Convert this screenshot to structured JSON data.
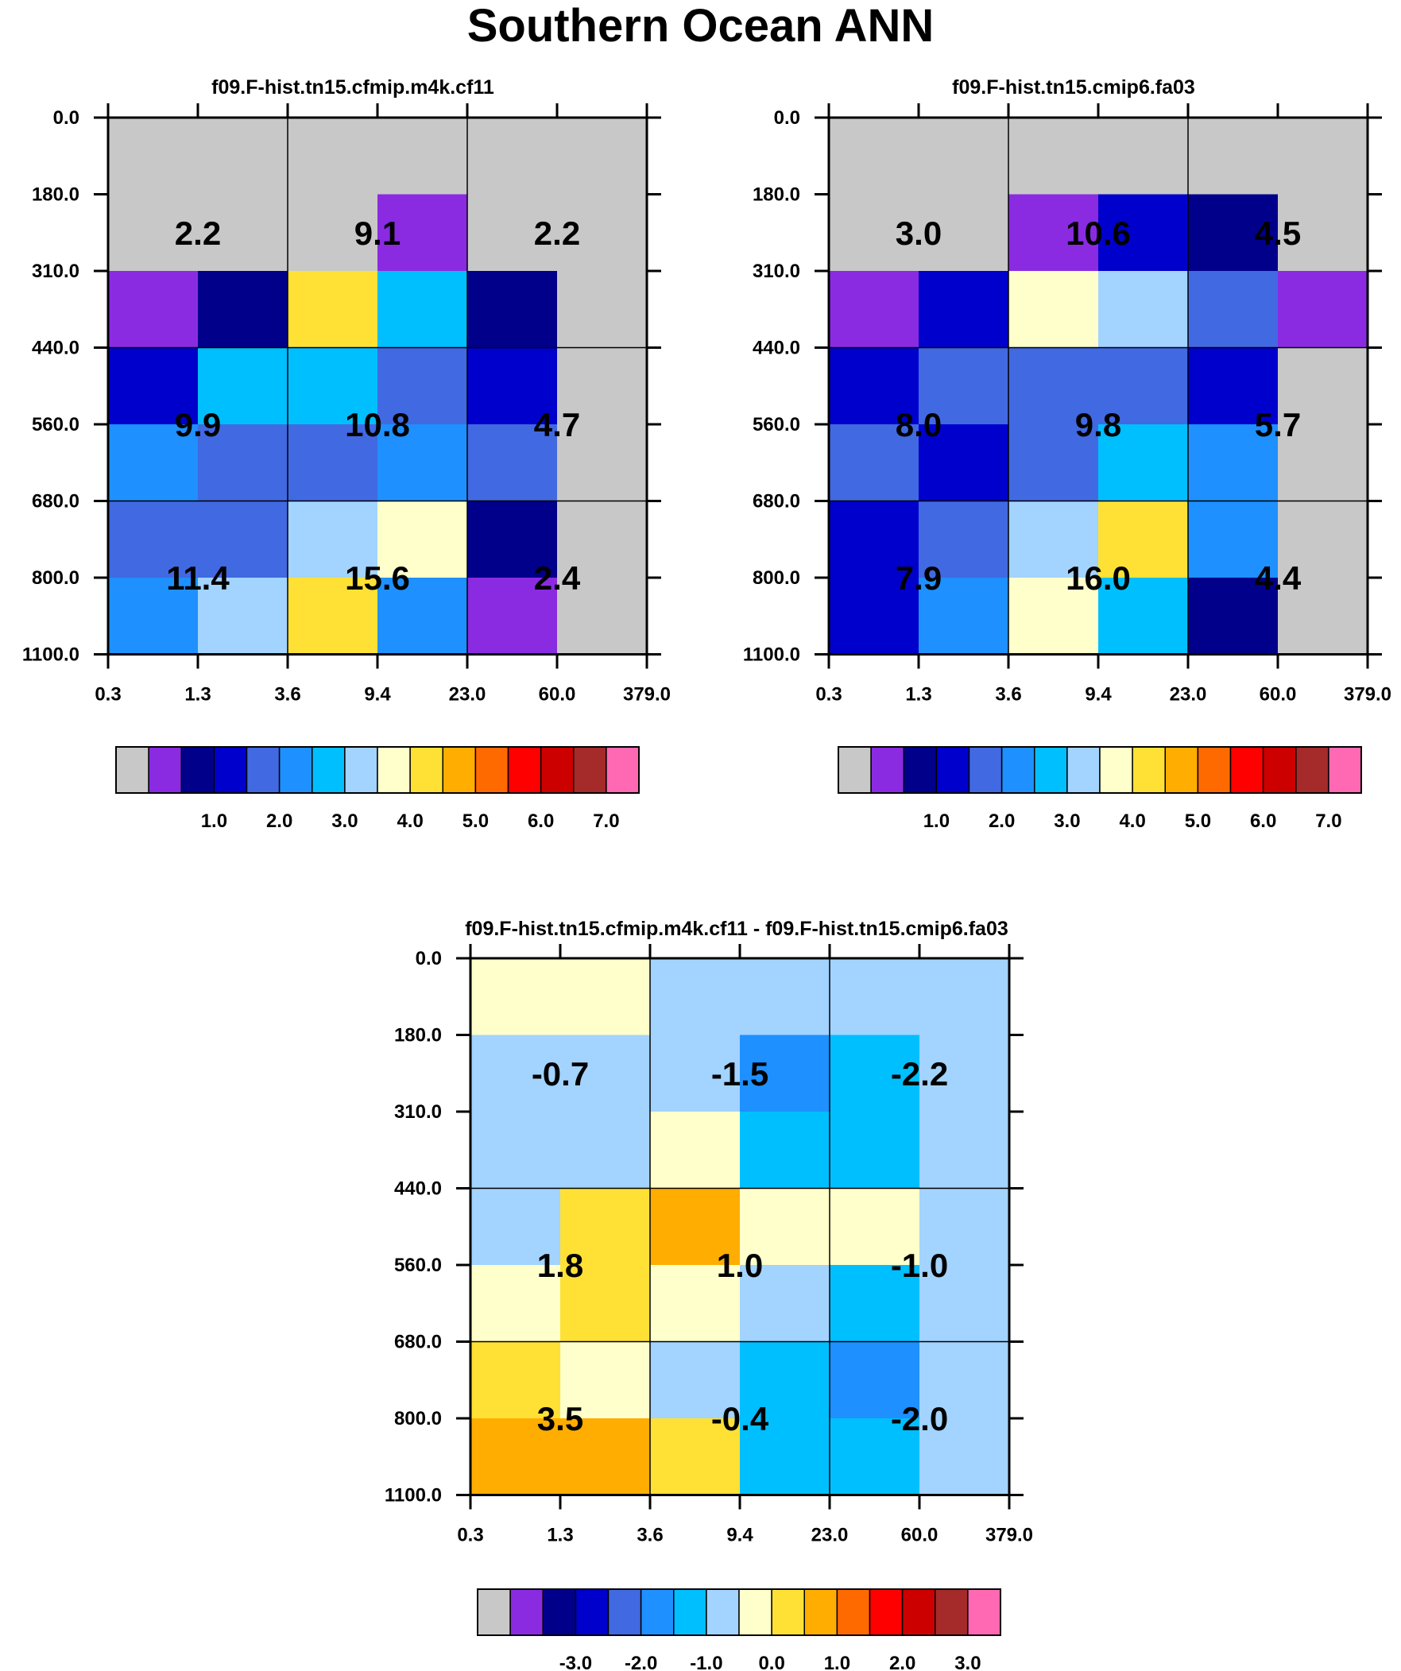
{
  "title": "Southern Ocean ANN",
  "chart_data": [
    {
      "type": "heatmap",
      "title": "f09.F-hist.tn15.cfmip.m4k.cf11",
      "x_ticks": [
        "0.3",
        "1.3",
        "3.6",
        "9.4",
        "23.0",
        "60.0",
        "379.0"
      ],
      "y_ticks": [
        "0.0",
        "180.0",
        "310.0",
        "440.0",
        "560.0",
        "680.0",
        "800.0",
        "1100.0"
      ],
      "cells": [
        [
          "c0",
          "c0",
          "c0",
          "c0",
          "c0",
          "c0"
        ],
        [
          "c0",
          "c0",
          "c0",
          "c1",
          "c0",
          "c0"
        ],
        [
          "c1",
          "c2",
          "c9",
          "c6",
          "c2",
          "c0"
        ],
        [
          "c3",
          "c6",
          "c6",
          "c4",
          "c3",
          "c0"
        ],
        [
          "c5",
          "c4",
          "c4",
          "c5",
          "c4",
          "c0"
        ],
        [
          "c4",
          "c4",
          "c7",
          "c8",
          "c2",
          "c0"
        ],
        [
          "c5",
          "c7",
          "c9",
          "c5",
          "c1",
          "c0"
        ]
      ],
      "box_values": [
        [
          "2.2",
          "9.1",
          "2.2"
        ],
        [
          "9.9",
          "10.8",
          "4.7"
        ],
        [
          "11.4",
          "15.6",
          "2.4"
        ]
      ],
      "colorbar": {
        "colors": [
          "#c8c8c8",
          "#8a2be2",
          "#00008b",
          "#0000cd",
          "#4169e1",
          "#1e90ff",
          "#00bfff",
          "#a3d3ff",
          "#ffffcc",
          "#ffe135",
          "#ffad00",
          "#ff6a00",
          "#ff0000",
          "#cd0000",
          "#a52a2a",
          "#ff69b4"
        ],
        "labels": [
          "1.0",
          "2.0",
          "3.0",
          "4.0",
          "5.0",
          "6.0",
          "7.0"
        ]
      }
    },
    {
      "type": "heatmap",
      "title": "f09.F-hist.tn15.cmip6.fa03",
      "x_ticks": [
        "0.3",
        "1.3",
        "3.6",
        "9.4",
        "23.0",
        "60.0",
        "379.0"
      ],
      "y_ticks": [
        "0.0",
        "180.0",
        "310.0",
        "440.0",
        "560.0",
        "680.0",
        "800.0",
        "1100.0"
      ],
      "cells": [
        [
          "c0",
          "c0",
          "c0",
          "c0",
          "c0",
          "c0"
        ],
        [
          "c0",
          "c0",
          "c1",
          "c3",
          "c2",
          "c0"
        ],
        [
          "c1",
          "c3",
          "c8",
          "c7",
          "c4",
          "c1"
        ],
        [
          "c3",
          "c4",
          "c4",
          "c4",
          "c3",
          "c0"
        ],
        [
          "c4",
          "c3",
          "c4",
          "c6",
          "c5",
          "c0"
        ],
        [
          "c3",
          "c4",
          "c7",
          "c9",
          "c5",
          "c0"
        ],
        [
          "c3",
          "c5",
          "c8",
          "c6",
          "c2",
          "c0"
        ]
      ],
      "box_values": [
        [
          "3.0",
          "10.6",
          "4.5"
        ],
        [
          "8.0",
          "9.8",
          "5.7"
        ],
        [
          "7.9",
          "16.0",
          "4.4"
        ]
      ],
      "colorbar": {
        "colors": [
          "#c8c8c8",
          "#8a2be2",
          "#00008b",
          "#0000cd",
          "#4169e1",
          "#1e90ff",
          "#00bfff",
          "#a3d3ff",
          "#ffffcc",
          "#ffe135",
          "#ffad00",
          "#ff6a00",
          "#ff0000",
          "#cd0000",
          "#a52a2a",
          "#ff69b4"
        ],
        "labels": [
          "1.0",
          "2.0",
          "3.0",
          "4.0",
          "5.0",
          "6.0",
          "7.0"
        ]
      }
    },
    {
      "type": "heatmap",
      "title": "f09.F-hist.tn15.cfmip.m4k.cf11 - f09.F-hist.tn15.cmip6.fa03",
      "x_ticks": [
        "0.3",
        "1.3",
        "3.6",
        "9.4",
        "23.0",
        "60.0",
        "379.0"
      ],
      "y_ticks": [
        "0.0",
        "180.0",
        "310.0",
        "440.0",
        "560.0",
        "680.0",
        "800.0",
        "1100.0"
      ],
      "cells": [
        [
          "c8",
          "c8",
          "c7",
          "c7",
          "c7",
          "c7"
        ],
        [
          "c7",
          "c7",
          "c7",
          "c5",
          "c6",
          "c7"
        ],
        [
          "c7",
          "c7",
          "c8",
          "c6",
          "c6",
          "c7"
        ],
        [
          "c7",
          "c9",
          "c10",
          "c8",
          "c8",
          "c7"
        ],
        [
          "c8",
          "c9",
          "c8",
          "c7",
          "c6",
          "c7"
        ],
        [
          "c9",
          "c8",
          "c7",
          "c6",
          "c5",
          "c7"
        ],
        [
          "c10",
          "c10",
          "c9",
          "c6",
          "c6",
          "c7"
        ]
      ],
      "box_values": [
        [
          "-0.7",
          "-1.5",
          "-2.2"
        ],
        [
          "1.8",
          "1.0",
          "-1.0"
        ],
        [
          "3.5",
          "-0.4",
          "-2.0"
        ]
      ],
      "colorbar": {
        "colors": [
          "#c8c8c8",
          "#8a2be2",
          "#00008b",
          "#0000cd",
          "#4169e1",
          "#1e90ff",
          "#00bfff",
          "#a3d3ff",
          "#ffffcc",
          "#ffe135",
          "#ffad00",
          "#ff6a00",
          "#ff0000",
          "#cd0000",
          "#a52a2a",
          "#ff69b4"
        ],
        "labels": [
          "-3.0",
          "-2.0",
          "-1.0",
          "0.0",
          "1.0",
          "2.0",
          "3.0"
        ]
      }
    }
  ]
}
